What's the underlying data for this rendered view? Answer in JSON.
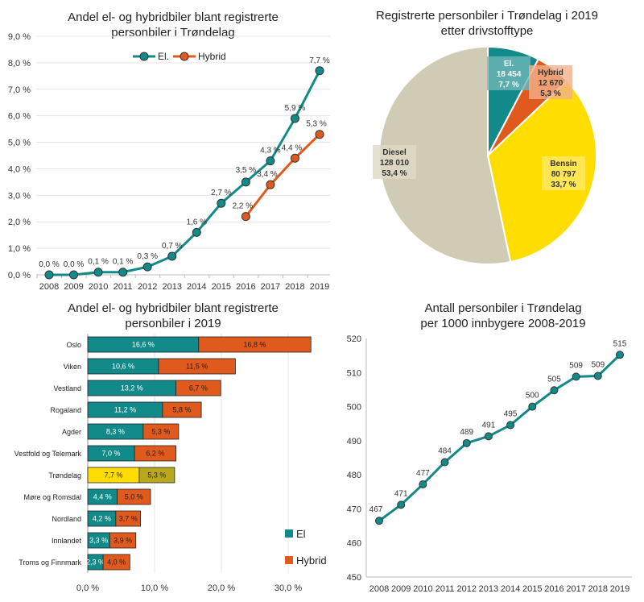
{
  "chart_data": [
    {
      "type": "line",
      "title": [
        "Andel el- og hybridbiler blant registrerte",
        "personbiler i Trøndelag"
      ],
      "categories": [
        "2008",
        "2009",
        "2010",
        "2011",
        "2012",
        "2013",
        "2014",
        "2015",
        "2016",
        "2017",
        "2018",
        "2019"
      ],
      "ylim": [
        0,
        9
      ],
      "yticks": [
        "0,0 %",
        "1,0 %",
        "2,0 %",
        "3,0 %",
        "4,0 %",
        "5,0 %",
        "6,0 %",
        "7,0 %",
        "8,0 %",
        "9,0 %"
      ],
      "legend": "top-center",
      "series": [
        {
          "name": "El.",
          "color": "#138A8A",
          "values": [
            0.0,
            0.0,
            0.1,
            0.1,
            0.3,
            0.7,
            1.6,
            2.7,
            3.5,
            4.3,
            5.9,
            7.7
          ],
          "labels": [
            "0,0 %",
            "0,0 %",
            "0,1 %",
            "0,1 %",
            "0,3 %",
            "0,7 %",
            "1,6 %",
            "2,7 %",
            "3,5 %",
            "4,3 %",
            "5,9 %",
            "7,7 %"
          ]
        },
        {
          "name": "Hybrid",
          "color": "#E05A1E",
          "values": [
            null,
            null,
            null,
            null,
            null,
            null,
            null,
            null,
            2.2,
            3.4,
            4.4,
            5.3
          ],
          "labels": [
            "",
            "",
            "",
            "",
            "",
            "",
            "",
            "",
            "2,2 %",
            "3,4 %",
            "4,4 %",
            "5,3 %"
          ]
        }
      ]
    },
    {
      "type": "pie",
      "title": [
        "Registrerte personbiler i Trøndelag i 2019",
        "etter drivstofftype"
      ],
      "slices": [
        {
          "name": "El.",
          "value": 18454,
          "count_label": "18 454",
          "pct_label": "7,7 %",
          "color": "#138A8A"
        },
        {
          "name": "Hybrid",
          "value": 12670,
          "count_label": "12 670",
          "pct_label": "5,3 %",
          "color": "#E05A1E"
        },
        {
          "name": "Bensin",
          "value": 80797,
          "count_label": "80 797",
          "pct_label": "33,7 %",
          "color": "#FFDD00"
        },
        {
          "name": "Diesel",
          "value": 128010,
          "count_label": "128 010",
          "pct_label": "53,4 %",
          "color": "#CFCBB5"
        }
      ]
    },
    {
      "type": "bar",
      "orientation": "horizontal-stacked",
      "title": [
        "Andel el- og hybridbiler blant registrerte",
        "personbiler i 2019"
      ],
      "categories": [
        "Oslo",
        "Viken",
        "Vestland",
        "Rogaland",
        "Agder",
        "Vestfold og Telemark",
        "Trøndelag",
        "Møre og Romsdal",
        "Nordland",
        "Innlandet",
        "Troms og Finnmark"
      ],
      "xlim": [
        0,
        35
      ],
      "xticks": [
        "0,0 %",
        "10,0 %",
        "20,0 %",
        "30,0 %"
      ],
      "legend": "bottom-right",
      "highlight": {
        "category": "Trøndelag",
        "colors": [
          "#FFDD00",
          "#B9A81E"
        ]
      },
      "series": [
        {
          "name": "El",
          "color": "#138A8A",
          "values": [
            16.6,
            10.6,
            13.2,
            11.2,
            8.3,
            7.0,
            7.7,
            4.4,
            4.2,
            3.3,
            2.3
          ],
          "labels": [
            "16,6 %",
            "10,6 %",
            "13,2 %",
            "11,2 %",
            "8,3 %",
            "7,0 %",
            "7,7 %",
            "4,4 %",
            "4,2 %",
            "3,3 %",
            "2,3 %"
          ]
        },
        {
          "name": "Hybrid",
          "color": "#E05A1E",
          "values": [
            16.8,
            11.5,
            6.7,
            5.8,
            5.3,
            6.2,
            5.3,
            5.0,
            3.7,
            3.9,
            4.0
          ],
          "labels": [
            "16,8 %",
            "11,5 %",
            "6,7 %",
            "5,8 %",
            "5,3 %",
            "6,2 %",
            "5,3 %",
            "5,0 %",
            "3,7 %",
            "3,9 %",
            "4,0 %"
          ]
        }
      ]
    },
    {
      "type": "line",
      "title": [
        "Antall personbiler i Trøndelag",
        "per 1000 innbygere 2008-2019"
      ],
      "categories": [
        "2008",
        "2009",
        "2010",
        "2011",
        "2012",
        "2013",
        "2014",
        "2015",
        "2016",
        "2017",
        "2018",
        "2019"
      ],
      "ylim": [
        450,
        520
      ],
      "yticks": [
        "450",
        "460",
        "470",
        "480",
        "490",
        "500",
        "510",
        "520"
      ],
      "series": [
        {
          "name": "Personbiler per 1000",
          "color": "#138A8A",
          "values": [
            466.5,
            471.2,
            477.2,
            483.7,
            489.3,
            491.3,
            494.6,
            500.0,
            504.8,
            508.8,
            509.0,
            515.2
          ],
          "labels": [
            "467",
            "471",
            "477",
            "484",
            "489",
            "491",
            "495",
            "500",
            "505",
            "509",
            "509",
            "515"
          ]
        }
      ]
    }
  ]
}
